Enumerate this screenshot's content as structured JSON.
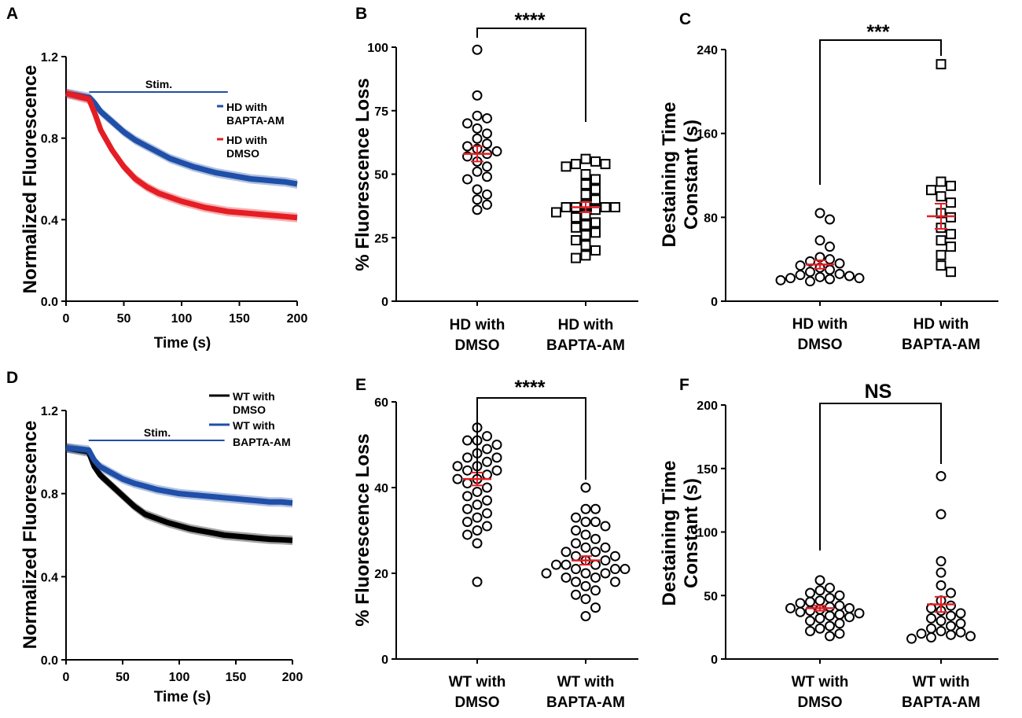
{
  "colors": {
    "blue": "#1f4fa8",
    "red": "#e41e24",
    "black": "#000000",
    "mean": "#e41e24"
  },
  "chart_data": [
    {
      "panel": "A",
      "type": "line",
      "xlabel": "Time (s)",
      "ylabel": "Normalized Fluorescence",
      "xlim": [
        0,
        200
      ],
      "ylim": [
        0,
        1.2
      ],
      "xticks": [
        0,
        50,
        100,
        150,
        200
      ],
      "yticks": [
        0.0,
        0.4,
        0.8,
        1.2
      ],
      "yticklabels": [
        "0.0",
        "0.4",
        "0.8",
        "1.2"
      ],
      "stim": {
        "label": "Stim.",
        "start": 20,
        "end": 140
      },
      "series": [
        {
          "name": "HD with BAPTA-AM",
          "legend_lines": [
            "HD with",
            "BAPTA-AM"
          ],
          "color": "#1f4fa8",
          "x": [
            0,
            20,
            25,
            30,
            40,
            50,
            60,
            70,
            80,
            90,
            100,
            110,
            120,
            130,
            140,
            150,
            160,
            170,
            180,
            190,
            200
          ],
          "y": [
            1.02,
            1.0,
            0.97,
            0.93,
            0.88,
            0.83,
            0.79,
            0.76,
            0.73,
            0.7,
            0.68,
            0.66,
            0.645,
            0.63,
            0.62,
            0.61,
            0.6,
            0.595,
            0.59,
            0.585,
            0.575
          ]
        },
        {
          "name": "HD with DMSO",
          "legend_lines": [
            "HD with",
            "DMSO"
          ],
          "color": "#e41e24",
          "x": [
            0,
            20,
            25,
            30,
            40,
            50,
            60,
            70,
            80,
            90,
            100,
            110,
            120,
            130,
            140,
            150,
            160,
            170,
            180,
            190,
            200
          ],
          "y": [
            1.02,
            0.99,
            0.92,
            0.84,
            0.74,
            0.66,
            0.6,
            0.56,
            0.53,
            0.51,
            0.49,
            0.475,
            0.46,
            0.45,
            0.44,
            0.435,
            0.43,
            0.425,
            0.42,
            0.415,
            0.41
          ]
        }
      ]
    },
    {
      "panel": "B",
      "type": "scatter",
      "ylabel": "% Fluorescence Loss",
      "ylim": [
        0,
        100
      ],
      "yticks": [
        0,
        25,
        50,
        75,
        100
      ],
      "significance": "****",
      "groups": [
        {
          "name": "HD with DMSO",
          "label_lines": [
            "HD with",
            "DMSO"
          ],
          "marker": "circle",
          "mean": 58,
          "sem": 3,
          "values": [
            99,
            81,
            73,
            72,
            70,
            68,
            66,
            64,
            62,
            61,
            60,
            59,
            58,
            57,
            55,
            53,
            51,
            49,
            48,
            44,
            42,
            40,
            38,
            36
          ]
        },
        {
          "name": "HD with BAPTA-AM",
          "label_lines": [
            "HD with",
            "BAPTA-AM"
          ],
          "marker": "square",
          "mean": 37,
          "sem": 2,
          "values": [
            56,
            55,
            54,
            54,
            53,
            50,
            48,
            46,
            44,
            42,
            40,
            38,
            37,
            37,
            37,
            37,
            36,
            35,
            34,
            33,
            31,
            30,
            29,
            27,
            26,
            24,
            22,
            20,
            18,
            17
          ]
        }
      ]
    },
    {
      "panel": "C",
      "type": "scatter",
      "ylabel": "Destaining Time Constant (s)",
      "ylabel_lines": [
        "Destaining Time",
        "Constant (s)"
      ],
      "ylim": [
        0,
        240
      ],
      "yticks": [
        0,
        80,
        160,
        240
      ],
      "significance": "***",
      "groups": [
        {
          "name": "HD with DMSO",
          "label_lines": [
            "HD with",
            "DMSO"
          ],
          "marker": "circle",
          "mean": 35,
          "sem": 4,
          "values": [
            84,
            78,
            58,
            52,
            42,
            40,
            38,
            36,
            34,
            32,
            30,
            28,
            26,
            25,
            24,
            23,
            22,
            22,
            21,
            20,
            19
          ]
        },
        {
          "name": "HD with BAPTA-AM",
          "label_lines": [
            "HD with",
            "BAPTA-AM"
          ],
          "marker": "square",
          "mean": 81,
          "sem": 12,
          "values": [
            226,
            114,
            110,
            106,
            100,
            94,
            84,
            80,
            70,
            64,
            58,
            52,
            44,
            34,
            28
          ]
        }
      ]
    },
    {
      "panel": "D",
      "type": "line",
      "xlabel": "Time (s)",
      "ylabel": "Normalized Fluorescence",
      "xlim": [
        0,
        200
      ],
      "ylim": [
        0,
        1.2
      ],
      "xticks": [
        0,
        50,
        100,
        150,
        200
      ],
      "yticks": [
        0.0,
        0.4,
        0.8,
        1.2
      ],
      "yticklabels": [
        "0.0",
        "0.4",
        "0.8",
        "1.2"
      ],
      "stim": {
        "label": "Stim.",
        "start": 20,
        "end": 140
      },
      "series": [
        {
          "name": "WT with DMSO",
          "legend_lines": [
            "WT with",
            "DMSO"
          ],
          "color": "#000000",
          "x": [
            0,
            20,
            25,
            30,
            40,
            50,
            60,
            70,
            80,
            90,
            100,
            110,
            120,
            130,
            140,
            150,
            160,
            170,
            180,
            190,
            200
          ],
          "y": [
            1.02,
            1.0,
            0.93,
            0.89,
            0.84,
            0.79,
            0.74,
            0.7,
            0.68,
            0.66,
            0.645,
            0.63,
            0.62,
            0.61,
            0.6,
            0.595,
            0.59,
            0.585,
            0.58,
            0.578,
            0.575
          ]
        },
        {
          "name": "WT with BAPTA-AM",
          "legend_lines": [
            "WT with",
            "BAPTA-AM"
          ],
          "color": "#1f4fa8",
          "x": [
            0,
            20,
            25,
            30,
            40,
            50,
            60,
            70,
            80,
            90,
            100,
            110,
            120,
            130,
            140,
            150,
            160,
            170,
            180,
            190,
            200
          ],
          "y": [
            1.02,
            1.01,
            0.96,
            0.93,
            0.9,
            0.87,
            0.85,
            0.835,
            0.82,
            0.81,
            0.8,
            0.795,
            0.79,
            0.785,
            0.78,
            0.775,
            0.77,
            0.765,
            0.76,
            0.76,
            0.755
          ]
        }
      ]
    },
    {
      "panel": "E",
      "type": "scatter",
      "ylabel": "% Fluorescence Loss",
      "ylim": [
        0,
        60
      ],
      "yticks": [
        0,
        20,
        40,
        60
      ],
      "significance": "****",
      "groups": [
        {
          "name": "WT with DMSO",
          "label_lines": [
            "WT with",
            "DMSO"
          ],
          "marker": "circle",
          "mean": 42,
          "sem": 1.5,
          "values": [
            54,
            52,
            51,
            51,
            50,
            49,
            48,
            47,
            47,
            46,
            45,
            45,
            44,
            44,
            43,
            42,
            42,
            41,
            40,
            39,
            38,
            37,
            36,
            35,
            34,
            33,
            32,
            31,
            30,
            29,
            27,
            18
          ]
        },
        {
          "name": "WT with BAPTA-AM",
          "label_lines": [
            "WT with",
            "BAPTA-AM"
          ],
          "marker": "circle",
          "mean": 23,
          "sem": 1,
          "values": [
            40,
            35,
            35,
            33,
            32,
            32,
            31,
            30,
            29,
            28,
            27,
            26,
            26,
            25,
            25,
            24,
            24,
            23,
            23,
            22,
            22,
            22,
            21,
            21,
            21,
            20,
            20,
            20,
            19,
            19,
            18,
            18,
            17,
            16,
            15,
            14,
            12,
            10
          ]
        }
      ]
    },
    {
      "panel": "F",
      "type": "scatter",
      "ylabel": "Destaining Time Constant (s)",
      "ylabel_lines": [
        "Destaining Time",
        "Constant (s)"
      ],
      "ylim": [
        0,
        200
      ],
      "yticks": [
        0,
        50,
        100,
        150,
        200
      ],
      "significance": "NS",
      "groups": [
        {
          "name": "WT with DMSO",
          "label_lines": [
            "WT with",
            "DMSO"
          ],
          "marker": "circle",
          "mean": 40,
          "sem": 2,
          "values": [
            62,
            56,
            54,
            52,
            50,
            48,
            46,
            45,
            44,
            42,
            41,
            40,
            40,
            39,
            38,
            37,
            36,
            35,
            34,
            33,
            32,
            30,
            28,
            26,
            24,
            22,
            20,
            18
          ]
        },
        {
          "name": "WT with BAPTA-AM",
          "label_lines": [
            "WT with",
            "BAPTA-AM"
          ],
          "marker": "circle",
          "mean": 43,
          "sem": 6,
          "values": [
            144,
            114,
            77,
            68,
            58,
            52,
            46,
            42,
            40,
            38,
            36,
            34,
            32,
            30,
            28,
            26,
            24,
            22,
            21,
            20,
            19,
            18,
            17,
            16
          ]
        }
      ]
    }
  ]
}
